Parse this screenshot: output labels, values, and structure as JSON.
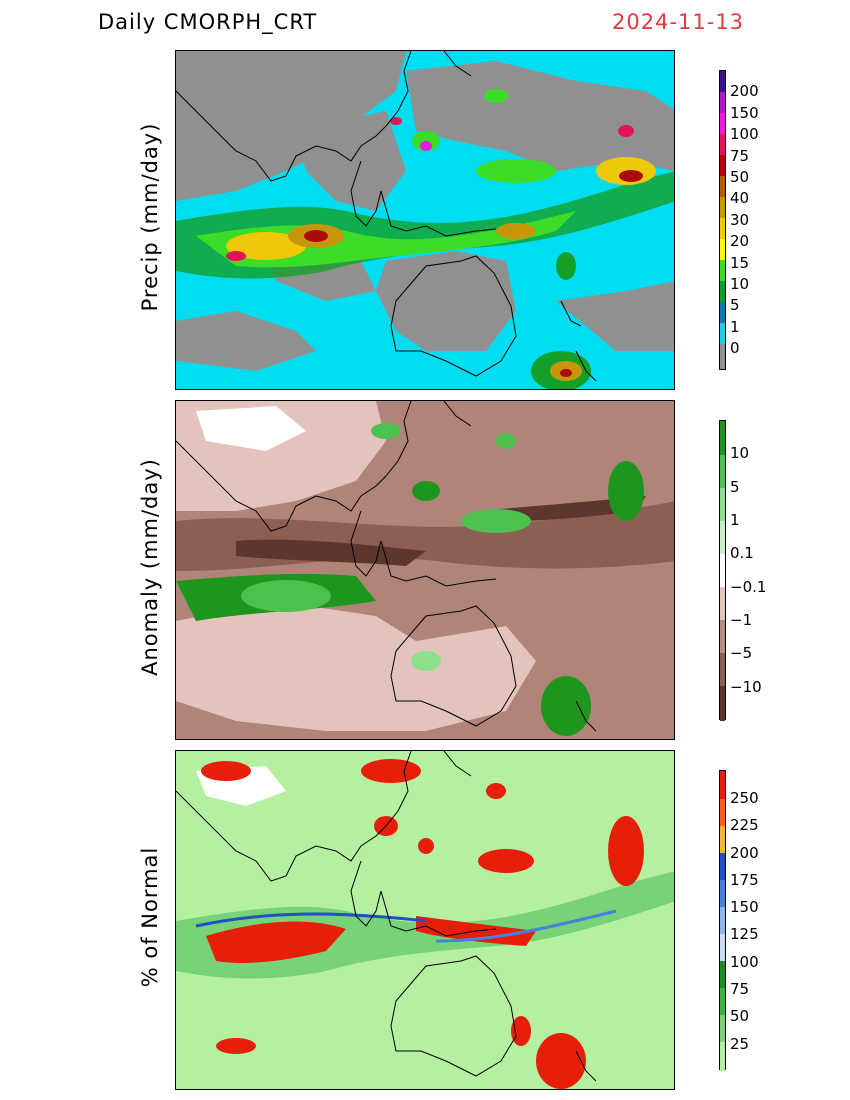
{
  "header": {
    "title": "Daily CMORPH_CRT",
    "date": "2024-11-13"
  },
  "panels": [
    {
      "id": "precip",
      "ylabel": "Precip (mm/day)",
      "legend_labels": [
        "200",
        "150",
        "100",
        "75",
        "50",
        "40",
        "30",
        "20",
        "15",
        "10",
        "5",
        "1",
        "0"
      ],
      "legend_colors": [
        "#3f0f8f",
        "#b419c8",
        "#e11ee1",
        "#e1145a",
        "#aa0a0a",
        "#b45a0a",
        "#c8960a",
        "#f0c80a",
        "#fafa0a",
        "#3cdc28",
        "#14a028",
        "#1478b4",
        "#28c8e6",
        "#909090"
      ],
      "background": "#00dcf0"
    },
    {
      "id": "anomaly",
      "ylabel": "Anomaly (mm/day)",
      "legend_labels": [
        "10",
        "5",
        "1",
        "0.1",
        "−0.1",
        "−1",
        "−5",
        "−10"
      ],
      "legend_colors": [
        "#1e961e",
        "#4ec04e",
        "#8ce08c",
        "#c8f0c8",
        "#ffffff",
        "#e2c4bc",
        "#b48c82",
        "#8c5e54",
        "#5e3630"
      ],
      "background": "#b08478"
    },
    {
      "id": "pct",
      "ylabel": "% of Normal",
      "legend_labels": [
        "250",
        "225",
        "200",
        "175",
        "150",
        "125",
        "100",
        "75",
        "50",
        "25"
      ],
      "legend_colors": [
        "#e61e0a",
        "#f0641e",
        "#fab43c",
        "#1e50c8",
        "#4682dc",
        "#8cb4f0",
        "#c8dcf8",
        "#1e8c1e",
        "#3cb43c",
        "#78d278",
        "#b4f0a0"
      ],
      "background": "#b4f0a0"
    }
  ]
}
